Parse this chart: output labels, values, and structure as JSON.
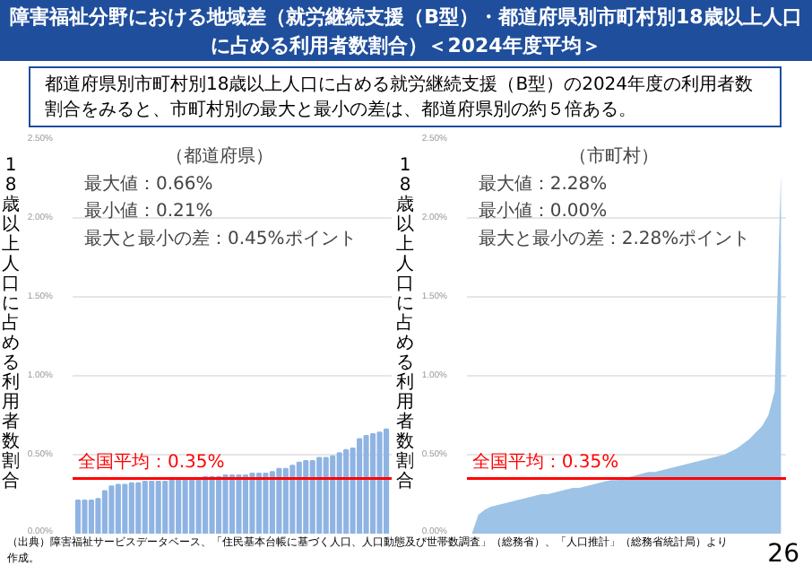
{
  "chart_data": [
    {
      "type": "bar",
      "title": "障害福祉分野における地域差（就労継続支援（B型）・都道府県別市町村別18歳以上人口に占める利用者数割合）＜2024年度平均＞",
      "subtitle": "都道府県別市町村別18歳以上人口に占める就労継続支援（B型）の2024年度の利用者数割合をみると、市町村別の最大と最小の差は、都道府県別の約５倍ある。",
      "ylabel": "18歳以上人口に占める利用者数割合",
      "annotations": [
        "（都道府県）",
        "最大値：0.66%",
        "最小値：0.21%",
        "最大と最小の差：0.45%ポイント",
        "（出典）障害福祉サービスデータベース、「住民基本台帳に基づく人口、人口動態及び世帯数調査」（総務省）、「人口推計」（総務省統計局）より作成。"
      ],
      "categories": [
        null,
        null,
        null,
        null,
        null,
        null,
        null,
        null,
        null,
        null,
        null,
        null,
        null,
        null,
        null,
        null,
        null,
        null,
        null,
        null,
        null,
        null,
        null,
        null,
        null,
        null,
        null,
        null,
        null,
        null,
        null,
        null,
        null,
        null,
        null,
        null,
        null,
        null,
        null,
        null,
        null,
        null,
        null,
        null,
        null,
        null,
        null
      ],
      "values": [
        0.21,
        0.21,
        0.21,
        0.22,
        0.27,
        0.3,
        0.31,
        0.31,
        0.32,
        0.32,
        0.33,
        0.33,
        0.33,
        0.33,
        0.34,
        0.34,
        0.35,
        0.35,
        0.35,
        0.36,
        0.36,
        0.36,
        0.37,
        0.37,
        0.37,
        0.37,
        0.38,
        0.38,
        0.38,
        0.39,
        0.41,
        0.41,
        0.43,
        0.45,
        0.46,
        0.46,
        0.48,
        0.48,
        0.49,
        0.51,
        0.53,
        0.54,
        0.6,
        0.62,
        0.63,
        0.64,
        0.66
      ],
      "color": "#8fb4e3",
      "ylim": [
        0,
        2.5
      ],
      "yticks": [
        {
          "value": 0,
          "label": "0.00%"
        },
        {
          "value": 0.5,
          "label": "0.50%"
        },
        {
          "value": 1,
          "label": "1.00%"
        },
        {
          "value": 1.5,
          "label": "1.50%"
        },
        {
          "value": 2,
          "label": "2.00%"
        },
        {
          "value": 2.5,
          "label": "2.50%"
        }
      ],
      "ref_lines": [
        {
          "axis": "y",
          "value": 0.35,
          "label": "全国平均：0.35%",
          "color": "#ff0000"
        }
      ],
      "grid": "y",
      "tick_labels": "y"
    },
    {
      "type": "area",
      "ylabel": "18歳以上人口に占める利用者数割合",
      "annotations": [
        "（市町村）",
        "最大値：2.28%",
        "最小値：0.00%",
        "最大と最小の差：2.28%ポイント",
        "26"
      ],
      "categories": [
        null,
        null,
        null,
        null,
        null,
        null,
        null,
        null,
        null,
        null,
        null,
        null,
        null,
        null,
        null,
        null,
        null,
        null,
        null,
        null,
        null,
        null,
        null,
        null,
        null,
        null,
        null,
        null,
        null,
        null,
        null,
        null,
        null,
        null,
        null,
        null,
        null,
        null,
        null,
        null,
        null,
        null,
        null,
        null,
        null,
        null,
        null,
        null,
        null,
        null
      ],
      "values": [
        0.0,
        0.12,
        0.15,
        0.17,
        0.18,
        0.19,
        0.2,
        0.21,
        0.22,
        0.23,
        0.24,
        0.25,
        0.25,
        0.26,
        0.27,
        0.28,
        0.29,
        0.29,
        0.3,
        0.31,
        0.32,
        0.33,
        0.34,
        0.34,
        0.35,
        0.36,
        0.37,
        0.38,
        0.39,
        0.39,
        0.4,
        0.41,
        0.42,
        0.43,
        0.44,
        0.45,
        0.46,
        0.47,
        0.48,
        0.49,
        0.5,
        0.52,
        0.54,
        0.57,
        0.6,
        0.64,
        0.68,
        0.75,
        0.9,
        2.28
      ],
      "color": "#9dc3e6",
      "ylim": [
        0,
        2.5
      ],
      "yticks": [
        {
          "value": 0,
          "label": "0.00%"
        },
        {
          "value": 0.5,
          "label": "0.50%"
        },
        {
          "value": 1,
          "label": "1.00%"
        },
        {
          "value": 1.5,
          "label": "1.50%"
        },
        {
          "value": 2,
          "label": "2.00%"
        },
        {
          "value": 2.5,
          "label": "2.50%"
        }
      ],
      "ref_lines": [
        {
          "axis": "y",
          "value": 0.35,
          "label": "全国平均：0.35%",
          "color": "#ff0000"
        }
      ],
      "grid": "y",
      "tick_labels": "y"
    }
  ]
}
